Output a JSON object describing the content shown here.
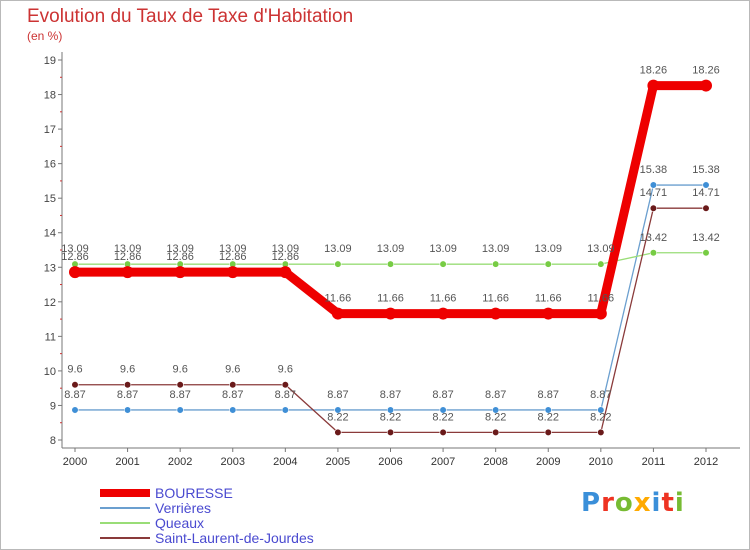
{
  "title": "Evolution du Taux de Taxe d'Habitation",
  "subtitle": "(en %)",
  "logo": "Proxiti",
  "chart_data": {
    "type": "line",
    "title": "Evolution du Taux de Taxe d'Habitation",
    "ylabel": "(en %)",
    "xlabel": "",
    "ylim": [
      8,
      19
    ],
    "yticks": [
      8,
      9,
      10,
      11,
      12,
      13,
      14,
      15,
      16,
      17,
      18,
      19
    ],
    "x": [
      "2000",
      "2001",
      "2002",
      "2003",
      "2004",
      "2005",
      "2006",
      "2007",
      "2008",
      "2009",
      "2010",
      "2011",
      "2012"
    ],
    "grid": false,
    "series": [
      {
        "name": "BOURESSE",
        "color": "#ee0000",
        "values": [
          12.86,
          12.86,
          12.86,
          12.86,
          12.86,
          11.66,
          11.66,
          11.66,
          11.66,
          11.66,
          11.66,
          18.26,
          18.26
        ],
        "labels": [
          "12.86",
          "12.86",
          "12.86",
          "12.86",
          "12.86",
          "11.66",
          "11.66",
          "11.66",
          "11.66",
          "11.66",
          "11.66",
          "18.26",
          "18.26"
        ]
      },
      {
        "name": "Verrières",
        "color": "#6b9fcf",
        "marker": "#3f8fd6",
        "values": [
          8.87,
          8.87,
          8.87,
          8.87,
          8.87,
          8.87,
          8.87,
          8.87,
          8.87,
          8.87,
          8.87,
          15.38,
          15.38
        ],
        "labels": [
          "8.87",
          "8.87",
          "8.87",
          "8.87",
          "8.87",
          "8.87",
          "8.87",
          "8.87",
          "8.87",
          "8.87",
          "8.87",
          "15.38",
          "15.38"
        ]
      },
      {
        "name": "Queaux",
        "color": "#99dd77",
        "marker": "#77cc44",
        "values": [
          13.09,
          13.09,
          13.09,
          13.09,
          13.09,
          13.09,
          13.09,
          13.09,
          13.09,
          13.09,
          13.09,
          13.42,
          13.42
        ],
        "labels": [
          "13.09",
          "13.09",
          "13.09",
          "13.09",
          "13.09",
          "13.09",
          "13.09",
          "13.09",
          "13.09",
          "13.09",
          "13.09",
          "13.42",
          "13.42"
        ]
      },
      {
        "name": "Saint-Laurent-de-Jourdes",
        "color": "#8a3a3a",
        "marker": "#6a1a1a",
        "values": [
          9.6,
          9.6,
          9.6,
          9.6,
          9.6,
          8.22,
          8.22,
          8.22,
          8.22,
          8.22,
          8.22,
          14.71,
          14.71
        ],
        "labels": [
          "9.6",
          "9.6",
          "9.6",
          "9.6",
          "9.6",
          "8.22",
          "8.22",
          "8.22",
          "8.22",
          "8.22",
          "8.22",
          "14.71",
          "14.71"
        ]
      }
    ]
  }
}
